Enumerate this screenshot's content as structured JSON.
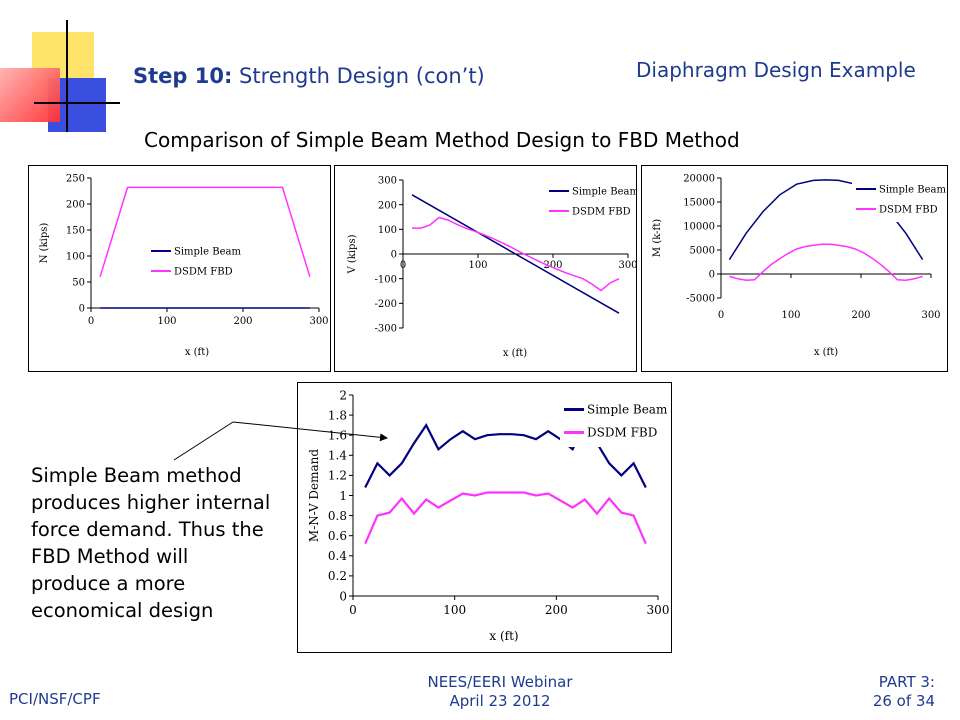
{
  "slide": {
    "step_bold": "Step 10:",
    "step_rest": " Strength Design (con’t)",
    "topic": "Diaphragm Design Example",
    "subtitle": "Comparison of Simple Beam Method Design to FBD Method",
    "note": "Simple Beam method produces higher internal force demand. Thus the FBD Method will produce a more economical design",
    "footer_left": "PCI/NSF/CPF",
    "footer_center_1": "NEES/EERI Webinar",
    "footer_center_2": "April 23 2012",
    "footer_right_1": "PART 3:",
    "footer_right_2": "26 of 34"
  },
  "colors": {
    "title_blue": "#1f3b8f",
    "simple_beam": "#000080",
    "dsdm_fbd": "#ff33ff",
    "logo_yellow": "#ffe46a",
    "logo_blue": "#3a4fe0",
    "logo_red": "#ff4040"
  },
  "chart_data": [
    {
      "id": "N",
      "type": "line",
      "xlabel": "x (ft)",
      "ylabel": "N (kips)",
      "xlim": [
        0,
        300
      ],
      "ylim": [
        0,
        250
      ],
      "xticks": [
        0,
        100,
        200,
        300
      ],
      "yticks": [
        0,
        50,
        100,
        150,
        200,
        250
      ],
      "legend": "center-right",
      "series": [
        {
          "name": "Simple Beam",
          "x": [
            12,
            288
          ],
          "y": [
            0,
            0
          ]
        },
        {
          "name": "DSDM FBD",
          "x": [
            12,
            48,
            252,
            288
          ],
          "y": [
            60,
            232,
            232,
            60
          ]
        }
      ]
    },
    {
      "id": "V",
      "type": "line",
      "xlabel": "x (ft)",
      "ylabel": "V (kips)",
      "xlim": [
        0,
        300
      ],
      "ylim": [
        -300,
        300
      ],
      "xticks": [
        0,
        100,
        200,
        300
      ],
      "yticks": [
        -300,
        -200,
        -100,
        0,
        100,
        200,
        300
      ],
      "legend": "top-right",
      "series": [
        {
          "name": "Simple Beam",
          "x": [
            12,
            288
          ],
          "y": [
            240,
            -240
          ]
        },
        {
          "name": "DSDM FBD",
          "x": [
            12,
            24,
            36,
            48,
            60,
            72,
            84,
            96,
            108,
            120,
            132,
            144,
            156,
            168,
            180,
            192,
            204,
            216,
            228,
            240,
            252,
            264,
            276,
            288
          ],
          "y": [
            105,
            105,
            118,
            148,
            138,
            120,
            104,
            92,
            78,
            63,
            46,
            28,
            8,
            -10,
            -28,
            -45,
            -60,
            -75,
            -88,
            -100,
            -122,
            -148,
            -118,
            -100
          ]
        }
      ]
    },
    {
      "id": "M",
      "type": "line",
      "xlabel": "x (ft)",
      "ylabel": "M (k-ft)",
      "xlim": [
        0,
        300
      ],
      "ylim": [
        -5000,
        20000
      ],
      "xticks": [
        0,
        100,
        200,
        300
      ],
      "yticks": [
        -5000,
        0,
        5000,
        10000,
        15000,
        20000
      ],
      "legend": "top-right",
      "series": [
        {
          "name": "Simple Beam",
          "x": [
            12,
            36,
            60,
            84,
            108,
            132,
            150,
            168,
            192,
            216,
            240,
            264,
            288
          ],
          "y": [
            3000,
            8500,
            13000,
            16500,
            18700,
            19500,
            19600,
            19500,
            18700,
            16500,
            13000,
            8500,
            3000
          ]
        },
        {
          "name": "DSDM FBD",
          "x": [
            12,
            24,
            36,
            48,
            60,
            72,
            84,
            96,
            108,
            120,
            132,
            144,
            156,
            168,
            180,
            192,
            204,
            216,
            228,
            240,
            252,
            264,
            276,
            288
          ],
          "y": [
            -500,
            -1000,
            -1300,
            -1200,
            500,
            2000,
            3200,
            4300,
            5200,
            5700,
            6000,
            6200,
            6200,
            6000,
            5700,
            5200,
            4400,
            3300,
            2000,
            500,
            -1200,
            -1300,
            -1000,
            -500
          ]
        }
      ]
    },
    {
      "id": "MNV",
      "type": "line",
      "xlabel": "x (ft)",
      "ylabel": "M-N-V Demand",
      "xlim": [
        0,
        300
      ],
      "ylim": [
        0,
        2
      ],
      "xticks": [
        0,
        100,
        200,
        300
      ],
      "yticks": [
        0,
        0.2,
        0.4,
        0.6,
        0.8,
        1,
        1.2,
        1.4,
        1.6,
        1.8,
        2
      ],
      "legend": "top-right",
      "series": [
        {
          "name": "Simple Beam",
          "x": [
            12,
            24,
            36,
            48,
            60,
            72,
            84,
            96,
            108,
            120,
            132,
            144,
            156,
            168,
            180,
            192,
            204,
            216,
            228,
            240,
            252,
            264,
            276,
            288
          ],
          "y": [
            1.08,
            1.32,
            1.2,
            1.32,
            1.52,
            1.7,
            1.46,
            1.56,
            1.64,
            1.56,
            1.6,
            1.61,
            1.61,
            1.6,
            1.56,
            1.64,
            1.56,
            1.46,
            1.7,
            1.52,
            1.32,
            1.2,
            1.32,
            1.08
          ]
        },
        {
          "name": "DSDM FBD",
          "x": [
            12,
            24,
            36,
            48,
            60,
            72,
            84,
            96,
            108,
            120,
            132,
            144,
            156,
            168,
            180,
            192,
            204,
            216,
            228,
            240,
            252,
            264,
            276,
            288
          ],
          "y": [
            0.52,
            0.8,
            0.83,
            0.97,
            0.82,
            0.96,
            0.88,
            0.95,
            1.02,
            1.0,
            1.03,
            1.03,
            1.03,
            1.03,
            1.0,
            1.02,
            0.95,
            0.88,
            0.96,
            0.82,
            0.97,
            0.83,
            0.8,
            0.52
          ]
        }
      ]
    }
  ]
}
